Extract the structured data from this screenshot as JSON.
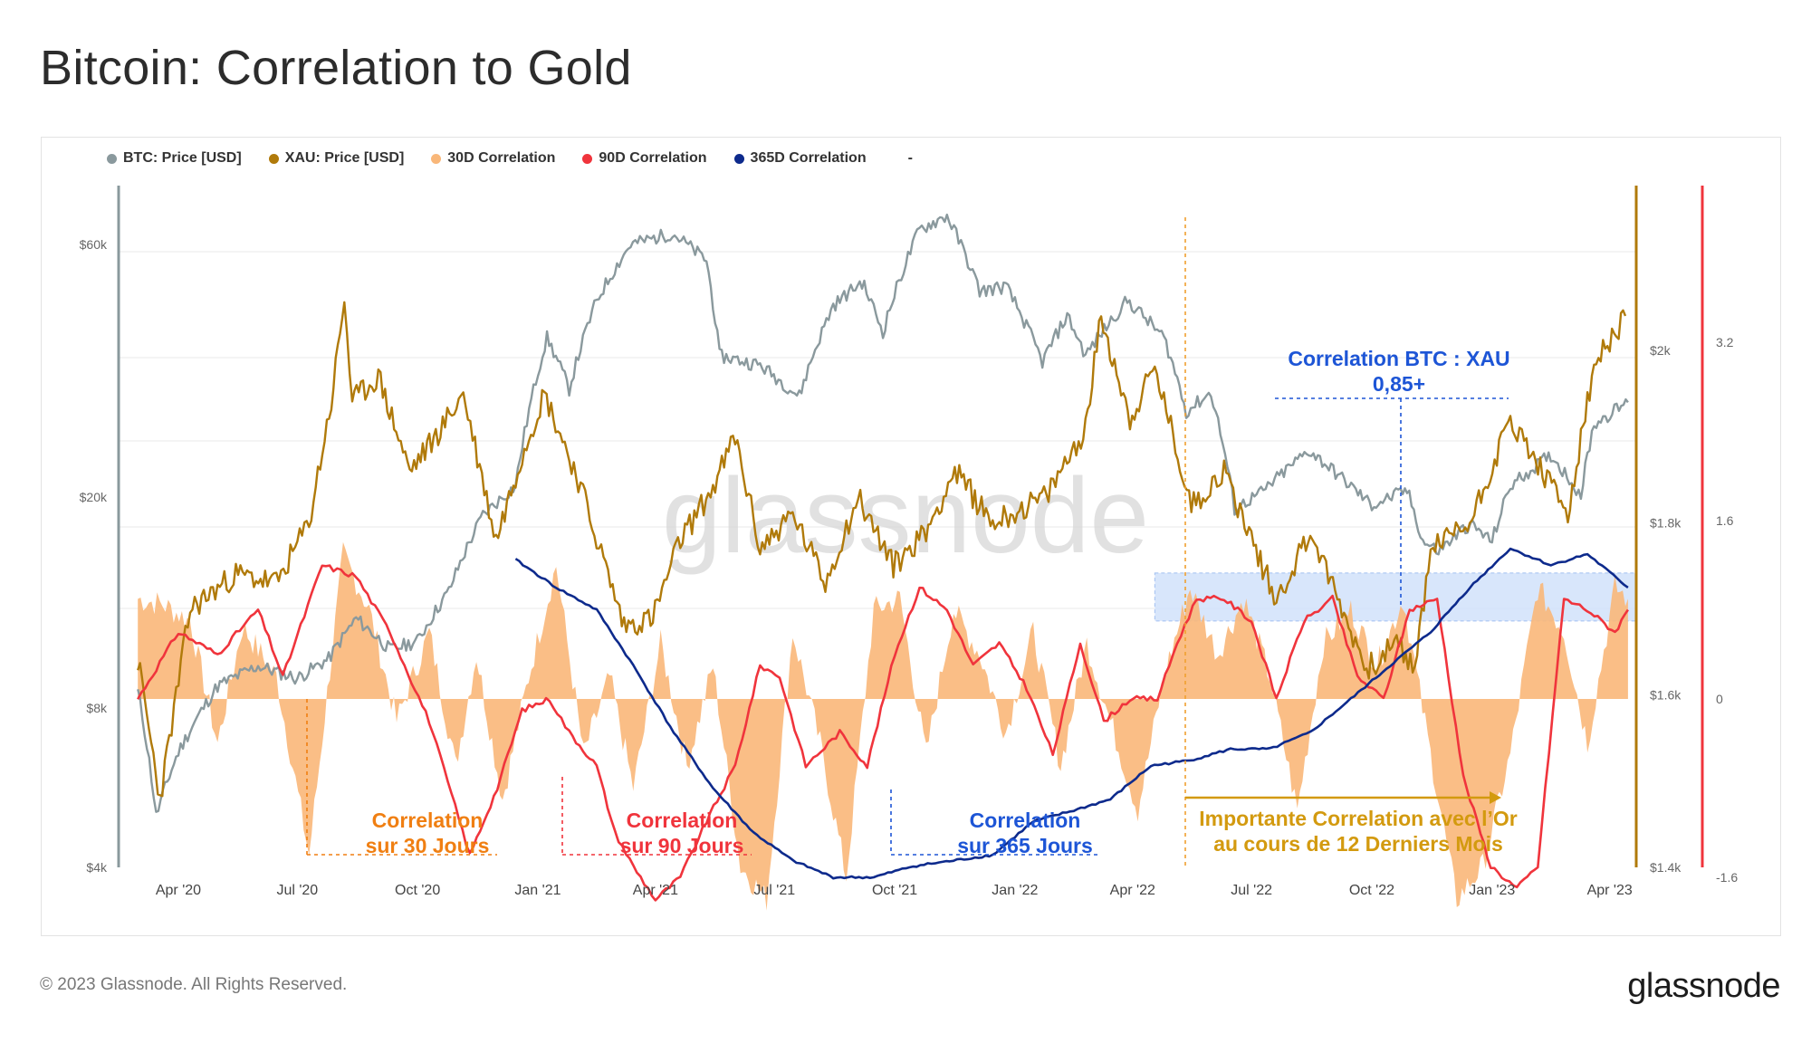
{
  "title": "Bitcoin: Correlation to Gold",
  "footer": "© 2023 Glassnode. All Rights Reserved.",
  "logo": "glassnode",
  "watermark": "glassnode",
  "legend": [
    {
      "label": "BTC: Price [USD]",
      "color": "#8a999d"
    },
    {
      "label": "XAU: Price [USD]",
      "color": "#b07a0a"
    },
    {
      "label": "30D Correlation",
      "color": "#f9b779"
    },
    {
      "label": "90D Correlation",
      "color": "#f0343c"
    },
    {
      "label": "365D Correlation",
      "color": "#0d2a8c"
    },
    {
      "label": "-",
      "color": ""
    }
  ],
  "annotations": {
    "c30": [
      "Correlation",
      "sur 30 Jours"
    ],
    "c90": [
      "Correlation",
      "sur 90 Jours"
    ],
    "c365": [
      "Correlation",
      "sur 365 Jours"
    ],
    "important": [
      "Importante Correlation avec l’Or",
      "au cours de 12 Derniers Mois"
    ],
    "btcxau": [
      "Correlation BTC : XAU",
      "0,85+"
    ]
  },
  "colors": {
    "btc": "#8a999d",
    "xau": "#b07a0a",
    "c30": "#f9b779",
    "c90": "#f0343c",
    "c365": "#0d2a8c",
    "ann30": "#f07f12",
    "ann90": "#f0343c",
    "ann365": "#1d55d6",
    "annImp": "#d39a0f"
  },
  "chart_data": {
    "type": "line",
    "x_axis": {
      "ticks": [
        "Apr '20",
        "Jul '20",
        "Oct '20",
        "Jan '21",
        "Apr '21",
        "Jul '21",
        "Oct '21",
        "Jan '22",
        "Apr '22",
        "Jul '22",
        "Oct '22",
        "Jan '23",
        "Apr '23"
      ]
    },
    "y_axes": {
      "btc": {
        "scale": "log",
        "ticks": [
          "$60k",
          "$20k",
          "$8k",
          "$4k"
        ],
        "tick_values": [
          60000,
          20000,
          8000,
          4000
        ]
      },
      "xau": {
        "scale": "linear",
        "ticks": [
          "$2k",
          "$1.8k",
          "$1.6k",
          "$1.4k"
        ],
        "tick_values": [
          2000,
          1800,
          1600,
          1400
        ]
      },
      "correlation": {
        "scale": "linear",
        "ticks": [
          "3.2",
          "1.6",
          "0",
          "-1.6"
        ],
        "tick_values": [
          3.2,
          1.6,
          0,
          -1.6
        ]
      }
    },
    "series": [
      {
        "name": "BTC: Price [USD]",
        "x": [
          "2020-03-01",
          "2020-03-15",
          "2020-04-01",
          "2020-05-01",
          "2020-06-01",
          "2020-07-01",
          "2020-07-25",
          "2020-08-15",
          "2020-09-10",
          "2020-10-01",
          "2020-10-25",
          "2020-11-20",
          "2020-12-15",
          "2021-01-08",
          "2021-01-25",
          "2021-02-15",
          "2021-03-13",
          "2021-04-14",
          "2021-05-10",
          "2021-05-20",
          "2021-06-20",
          "2021-07-20",
          "2021-08-15",
          "2021-09-06",
          "2021-09-22",
          "2021-10-20",
          "2021-11-10",
          "2021-12-05",
          "2021-12-25",
          "2022-01-22",
          "2022-02-10",
          "2022-02-24",
          "2022-03-28",
          "2022-04-25",
          "2022-05-12",
          "2022-05-31",
          "2022-06-18",
          "2022-07-10",
          "2022-08-14",
          "2022-09-10",
          "2022-10-01",
          "2022-10-28",
          "2022-11-09",
          "2022-11-21",
          "2022-12-15",
          "2023-01-01",
          "2023-01-15",
          "2023-02-15",
          "2023-03-10",
          "2023-03-20",
          "2023-04-15"
        ],
        "values": [
          8600,
          5000,
          6600,
          8800,
          9600,
          9100,
          9900,
          11800,
          10300,
          10700,
          13300,
          18500,
          21000,
          40000,
          32000,
          47000,
          60000,
          63000,
          56000,
          37000,
          35500,
          31000,
          46000,
          51000,
          41000,
          64000,
          68000,
          49000,
          50000,
          36000,
          44000,
          37000,
          47000,
          40000,
          29000,
          31500,
          19000,
          20500,
          24500,
          21500,
          19300,
          20600,
          16500,
          15800,
          17800,
          16500,
          21000,
          24000,
          20200,
          27500,
          30200
        ]
      },
      {
        "name": "XAU: Price [USD]",
        "x": [
          "2020-03-01",
          "2020-03-18",
          "2020-04-10",
          "2020-05-15",
          "2020-06-15",
          "2020-07-10",
          "2020-07-27",
          "2020-08-06",
          "2020-08-12",
          "2020-09-01",
          "2020-09-25",
          "2020-10-15",
          "2020-11-05",
          "2020-11-30",
          "2020-12-20",
          "2021-01-06",
          "2021-02-01",
          "2021-03-08",
          "2021-03-30",
          "2021-04-20",
          "2021-05-15",
          "2021-06-01",
          "2021-06-20",
          "2021-07-15",
          "2021-08-09",
          "2021-09-03",
          "2021-09-30",
          "2021-10-25",
          "2021-11-16",
          "2021-12-15",
          "2022-01-25",
          "2022-02-24",
          "2022-03-08",
          "2022-03-30",
          "2022-04-18",
          "2022-05-16",
          "2022-06-10",
          "2022-07-20",
          "2022-08-15",
          "2022-09-27",
          "2022-10-20",
          "2022-11-03",
          "2022-11-15",
          "2022-12-15",
          "2023-01-15",
          "2023-02-28",
          "2023-03-20",
          "2023-04-13"
        ],
        "values": [
          1640,
          1480,
          1700,
          1740,
          1730,
          1800,
          1940,
          2060,
          1940,
          1970,
          1860,
          1900,
          1950,
          1780,
          1880,
          1950,
          1850,
          1680,
          1690,
          1780,
          1840,
          1900,
          1770,
          1810,
          1730,
          1830,
          1750,
          1790,
          1860,
          1800,
          1830,
          1910,
          2040,
          1920,
          1980,
          1820,
          1860,
          1710,
          1790,
          1630,
          1660,
          1630,
          1770,
          1800,
          1920,
          1810,
          1980,
          2040
        ]
      },
      {
        "name": "30D Correlation",
        "x": [
          "2020-03-01",
          "2020-03-20",
          "2020-04-10",
          "2020-05-01",
          "2020-05-20",
          "2020-06-15",
          "2020-07-10",
          "2020-08-05",
          "2020-08-25",
          "2020-09-15",
          "2020-10-10",
          "2020-10-30",
          "2020-11-15",
          "2020-12-05",
          "2020-12-25",
          "2021-01-15",
          "2021-02-05",
          "2021-02-25",
          "2021-03-15",
          "2021-04-05",
          "2021-04-25",
          "2021-05-15",
          "2021-06-05",
          "2021-06-25",
          "2021-07-15",
          "2021-08-05",
          "2021-08-25",
          "2021-09-15",
          "2021-10-05",
          "2021-10-25",
          "2021-11-15",
          "2021-12-05",
          "2021-12-25",
          "2022-01-15",
          "2022-02-05",
          "2022-02-25",
          "2022-03-15",
          "2022-04-05",
          "2022-04-25",
          "2022-05-15",
          "2022-06-05",
          "2022-06-25",
          "2022-07-15",
          "2022-08-05",
          "2022-08-25",
          "2022-09-15",
          "2022-10-05",
          "2022-10-25",
          "2022-11-15",
          "2022-12-05",
          "2022-12-25",
          "2023-01-15",
          "2023-02-05",
          "2023-02-25",
          "2023-03-15",
          "2023-04-05",
          "2023-04-15"
        ],
        "values": [
          0.9,
          0.85,
          0.7,
          -0.4,
          0.65,
          0.2,
          -1.4,
          1.3,
          0.8,
          -0.2,
          0.6,
          -0.6,
          0.4,
          -0.9,
          0.2,
          1.2,
          -0.5,
          0.2,
          -0.8,
          0.5,
          -0.6,
          0.3,
          -1.5,
          -1.8,
          0.6,
          -0.4,
          -1.6,
          0.8,
          0.9,
          -0.5,
          0.8,
          0.4,
          -0.3,
          0.6,
          -0.6,
          0.5,
          -0.2,
          -1.0,
          0.2,
          1.0,
          0.4,
          0.9,
          0.2,
          -1.0,
          0.5,
          0.8,
          0.3,
          0.9,
          -0.5,
          -1.8,
          -1.5,
          -0.5,
          1.0,
          0.6,
          -0.4,
          1.0,
          0.9
        ]
      },
      {
        "name": "90D Correlation",
        "x": [
          "2020-03-01",
          "2020-04-01",
          "2020-05-01",
          "2020-06-01",
          "2020-06-20",
          "2020-07-20",
          "2020-08-15",
          "2020-09-10",
          "2020-10-10",
          "2020-11-10",
          "2020-12-01",
          "2020-12-20",
          "2021-01-10",
          "2021-01-25",
          "2021-02-15",
          "2021-03-01",
          "2021-03-15",
          "2021-04-01",
          "2021-04-20",
          "2021-05-10",
          "2021-06-01",
          "2021-06-20",
          "2021-07-05",
          "2021-07-25",
          "2021-08-20",
          "2021-09-10",
          "2021-10-01",
          "2021-10-20",
          "2021-11-10",
          "2021-11-30",
          "2021-12-20",
          "2022-01-10",
          "2022-01-30",
          "2022-02-20",
          "2022-03-10",
          "2022-03-30",
          "2022-04-20",
          "2022-05-05",
          "2022-05-20",
          "2022-06-10",
          "2022-07-01",
          "2022-07-20",
          "2022-08-10",
          "2022-09-01",
          "2022-09-20",
          "2022-10-10",
          "2022-10-30",
          "2022-11-20",
          "2022-12-10",
          "2022-12-31",
          "2023-01-20",
          "2023-02-05",
          "2023-02-25",
          "2023-03-15",
          "2023-04-05",
          "2023-04-15"
        ],
        "values": [
          0.0,
          0.6,
          0.4,
          0.8,
          0.2,
          1.2,
          1.1,
          0.6,
          -0.2,
          -1.4,
          -0.8,
          -0.1,
          0.0,
          -0.3,
          -0.6,
          -1.2,
          -1.5,
          -1.8,
          -1.6,
          -1.1,
          -0.6,
          0.3,
          0.2,
          -0.6,
          -0.3,
          -0.6,
          0.4,
          1.0,
          0.8,
          0.3,
          0.5,
          0.1,
          -0.5,
          0.5,
          -0.2,
          0.0,
          0.0,
          0.5,
          0.9,
          0.9,
          0.7,
          0.0,
          0.7,
          0.9,
          0.2,
          0.0,
          0.8,
          0.9,
          -0.7,
          -1.5,
          -1.7,
          -1.5,
          0.9,
          0.8,
          0.6,
          0.8
        ]
      },
      {
        "name": "365D Correlation",
        "x": [
          "2020-12-15",
          "2021-01-15",
          "2021-02-15",
          "2021-03-15",
          "2021-04-15",
          "2021-05-15",
          "2021-06-15",
          "2021-07-15",
          "2021-08-15",
          "2021-09-15",
          "2021-10-15",
          "2021-11-15",
          "2021-12-15",
          "2022-01-15",
          "2022-02-15",
          "2022-03-15",
          "2022-04-15",
          "2022-05-15",
          "2022-06-15",
          "2022-07-15",
          "2022-08-15",
          "2022-09-15",
          "2022-10-15",
          "2022-11-15",
          "2022-12-15",
          "2023-01-15",
          "2023-02-15",
          "2023-03-15",
          "2023-04-15"
        ],
        "values": [
          1.25,
          1.0,
          0.8,
          0.3,
          -0.3,
          -0.8,
          -1.2,
          -1.45,
          -1.6,
          -1.6,
          -1.5,
          -1.45,
          -1.4,
          -1.1,
          -1.0,
          -0.9,
          -0.6,
          -0.55,
          -0.45,
          -0.45,
          -0.3,
          0.0,
          0.3,
          0.6,
          1.0,
          1.35,
          1.2,
          1.3,
          1.0
        ]
      }
    ]
  }
}
